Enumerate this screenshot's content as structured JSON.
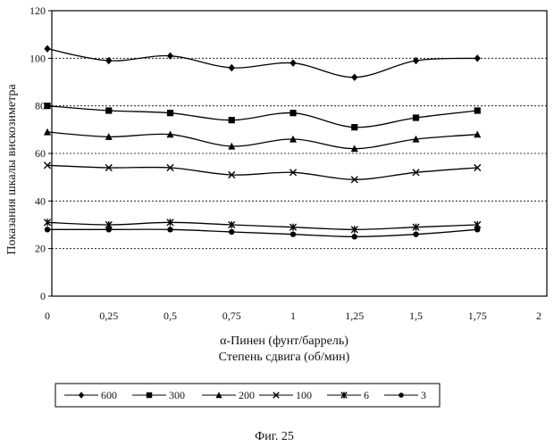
{
  "chart_data": {
    "type": "line",
    "xlabel": "α-Пинен (фунт/баррель)",
    "xlabel2": "Степень сдвига (об/мин)",
    "ylabel": "Показания шкалы вискозиметра",
    "caption": "Фиг. 25",
    "x": [
      0,
      0.25,
      0.5,
      0.75,
      1,
      1.25,
      1.5,
      1.75
    ],
    "x_tick_labels": [
      "0",
      "0,25",
      "0,5",
      "0,75",
      "1",
      "1,25",
      "1,5",
      "1,75",
      "2"
    ],
    "x_ticks": [
      0,
      0.25,
      0.5,
      0.75,
      1,
      1.25,
      1.5,
      1.75,
      2
    ],
    "xlim": [
      0,
      2
    ],
    "y_ticks": [
      0,
      20,
      40,
      60,
      80,
      100,
      120
    ],
    "y_tick_labels": [
      "0",
      "20",
      "40",
      "60",
      "80",
      "100",
      "120"
    ],
    "ylim": [
      0,
      120
    ],
    "grid": "horizontal-dashed",
    "legend_position": "bottom",
    "series": [
      {
        "name": "600",
        "marker": "diamond",
        "values": [
          104,
          99,
          101,
          96,
          98,
          92,
          99,
          100
        ]
      },
      {
        "name": "300",
        "marker": "square",
        "values": [
          80,
          78,
          77,
          74,
          77,
          71,
          75,
          78
        ]
      },
      {
        "name": "200",
        "marker": "triangle",
        "values": [
          69,
          67,
          68,
          63,
          66,
          62,
          66,
          68
        ]
      },
      {
        "name": "100",
        "marker": "x",
        "values": [
          55,
          54,
          54,
          51,
          52,
          49,
          52,
          54
        ]
      },
      {
        "name": "6",
        "marker": "asterisk",
        "values": [
          31,
          30,
          31,
          30,
          29,
          28,
          29,
          30
        ]
      },
      {
        "name": "3",
        "marker": "circle",
        "values": [
          28,
          28,
          28,
          27,
          26,
          25,
          26,
          28
        ]
      }
    ]
  }
}
